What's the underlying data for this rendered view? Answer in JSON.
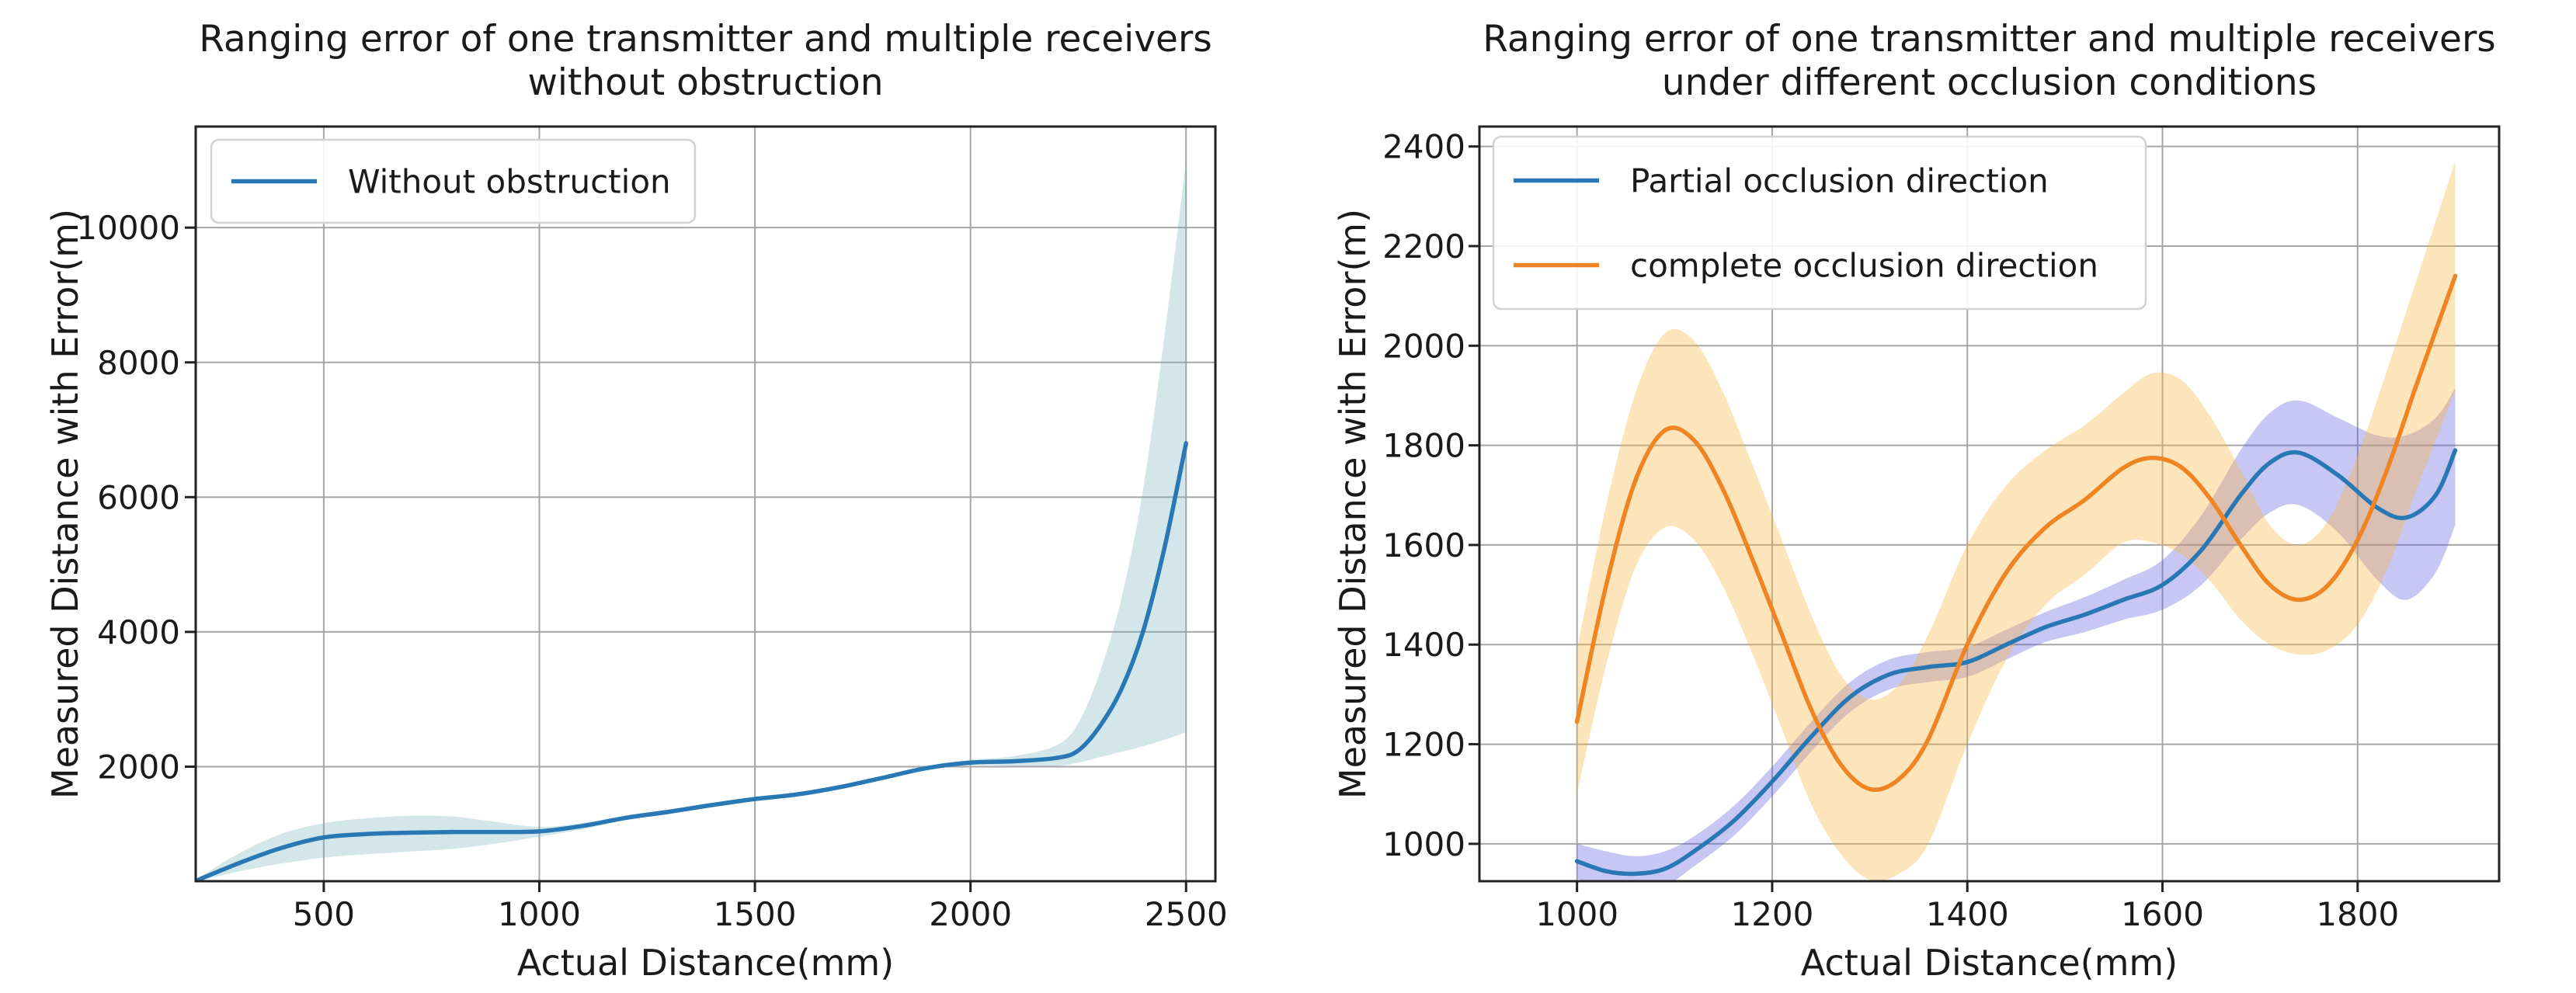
{
  "figure": {
    "background": "#ffffff",
    "text_color": "#1a1a1a",
    "grid_color": "#a6a6a6",
    "spine_color": "#222222"
  },
  "chart_data": [
    {
      "type": "line",
      "title": "Ranging error of one transmitter and multiple receivers without obstruction",
      "title_lines": [
        "Ranging error of one transmitter and multiple receivers",
        "without obstruction"
      ],
      "xlabel": "Actual Distance(mm)",
      "ylabel": "Measured Distance with Error(m)",
      "xlim": [
        203,
        2568
      ],
      "ylim": [
        300,
        11500
      ],
      "xticks": [
        500,
        1000,
        1500,
        2000,
        2500
      ],
      "yticks": [
        2000,
        4000,
        6000,
        8000,
        10000
      ],
      "grid": true,
      "legend_position": "upper left",
      "series": [
        {
          "name": "Without obstruction",
          "color": "#2878b5",
          "band_color": "rgba(110,175,185,0.30)",
          "x": [
            205,
            300,
            400,
            500,
            600,
            700,
            800,
            900,
            1000,
            1100,
            1200,
            1300,
            1400,
            1500,
            1600,
            1700,
            1800,
            1900,
            2000,
            2100,
            2200,
            2250,
            2300,
            2350,
            2400,
            2450,
            2500
          ],
          "y": [
            310,
            560,
            790,
            950,
            1000,
            1020,
            1030,
            1030,
            1040,
            1120,
            1240,
            1330,
            1430,
            1520,
            1590,
            1700,
            1840,
            1980,
            2060,
            2080,
            2130,
            2240,
            2600,
            3150,
            4000,
            5250,
            6800
          ],
          "band_upper": [
            330,
            700,
            1000,
            1160,
            1235,
            1270,
            1260,
            1180,
            1105,
            1165,
            1275,
            1365,
            1465,
            1552,
            1622,
            1732,
            1872,
            2012,
            2100,
            2155,
            2320,
            2650,
            3400,
            4500,
            6100,
            8400,
            11000
          ],
          "band_lower": [
            295,
            440,
            560,
            650,
            700,
            740,
            780,
            860,
            960,
            1070,
            1205,
            1295,
            1395,
            1488,
            1558,
            1668,
            1808,
            1948,
            2020,
            2010,
            2010,
            2060,
            2140,
            2220,
            2300,
            2400,
            2510
          ]
        }
      ]
    },
    {
      "type": "line",
      "title": "Ranging error of one transmitter and multiple receivers under different occlusion conditions",
      "title_lines": [
        "Ranging error of one transmitter and multiple receivers",
        "under different occlusion conditions"
      ],
      "xlabel": "Actual Distance(mm)",
      "ylabel": "Measured Distance with Error(m)",
      "xlim": [
        900,
        1945
      ],
      "ylim": [
        925,
        2440
      ],
      "xticks": [
        1000,
        1200,
        1400,
        1600,
        1800
      ],
      "yticks": [
        1000,
        1200,
        1400,
        1600,
        1800,
        2000,
        2200,
        2400
      ],
      "grid": true,
      "legend_position": "upper left",
      "series": [
        {
          "name": "Partial occlusion direction",
          "color": "#2878b5",
          "band_color": "rgba(88,82,218,0.33)",
          "x": [
            1000,
            1030,
            1060,
            1090,
            1120,
            1160,
            1200,
            1240,
            1280,
            1320,
            1360,
            1400,
            1440,
            1480,
            1520,
            1560,
            1600,
            1640,
            1680,
            1710,
            1740,
            1780,
            1820,
            1850,
            1880,
            1900
          ],
          "y": [
            965,
            945,
            940,
            950,
            985,
            1045,
            1125,
            1215,
            1295,
            1340,
            1355,
            1365,
            1400,
            1435,
            1460,
            1490,
            1520,
            1590,
            1700,
            1765,
            1785,
            1740,
            1675,
            1655,
            1700,
            1790
          ],
          "band_upper": [
            1000,
            985,
            975,
            985,
            1015,
            1075,
            1155,
            1245,
            1325,
            1370,
            1385,
            1395,
            1430,
            1465,
            1495,
            1530,
            1570,
            1660,
            1790,
            1865,
            1890,
            1855,
            1820,
            1820,
            1855,
            1915
          ],
          "band_lower": [
            930,
            908,
            905,
            915,
            955,
            1015,
            1095,
            1185,
            1265,
            1310,
            1325,
            1335,
            1370,
            1405,
            1425,
            1450,
            1470,
            1520,
            1610,
            1665,
            1680,
            1625,
            1530,
            1490,
            1545,
            1640
          ]
        },
        {
          "name": "complete occlusion direction",
          "color": "#ee8522",
          "band_color": "rgba(250,180,60,0.35)",
          "x": [
            1000,
            1030,
            1060,
            1090,
            1120,
            1150,
            1180,
            1210,
            1240,
            1270,
            1300,
            1330,
            1360,
            1400,
            1440,
            1480,
            1520,
            1560,
            1590,
            1620,
            1650,
            1680,
            1710,
            1740,
            1770,
            1800,
            1830,
            1860,
            1880,
            1900
          ],
          "y": [
            1245,
            1520,
            1730,
            1830,
            1810,
            1710,
            1570,
            1420,
            1270,
            1160,
            1110,
            1130,
            1210,
            1400,
            1545,
            1635,
            1690,
            1755,
            1775,
            1755,
            1690,
            1600,
            1520,
            1490,
            1520,
            1610,
            1750,
            1920,
            2030,
            2140
          ],
          "band_upper": [
            1390,
            1680,
            1905,
            2025,
            2010,
            1905,
            1760,
            1610,
            1460,
            1340,
            1290,
            1320,
            1420,
            1600,
            1720,
            1790,
            1840,
            1905,
            1945,
            1930,
            1855,
            1750,
            1640,
            1600,
            1650,
            1780,
            1950,
            2130,
            2250,
            2370
          ],
          "band_lower": [
            1100,
            1360,
            1555,
            1635,
            1610,
            1515,
            1380,
            1230,
            1080,
            980,
            928,
            940,
            1000,
            1200,
            1370,
            1480,
            1540,
            1605,
            1605,
            1580,
            1525,
            1450,
            1400,
            1380,
            1390,
            1440,
            1550,
            1710,
            1810,
            1910
          ]
        }
      ]
    }
  ]
}
